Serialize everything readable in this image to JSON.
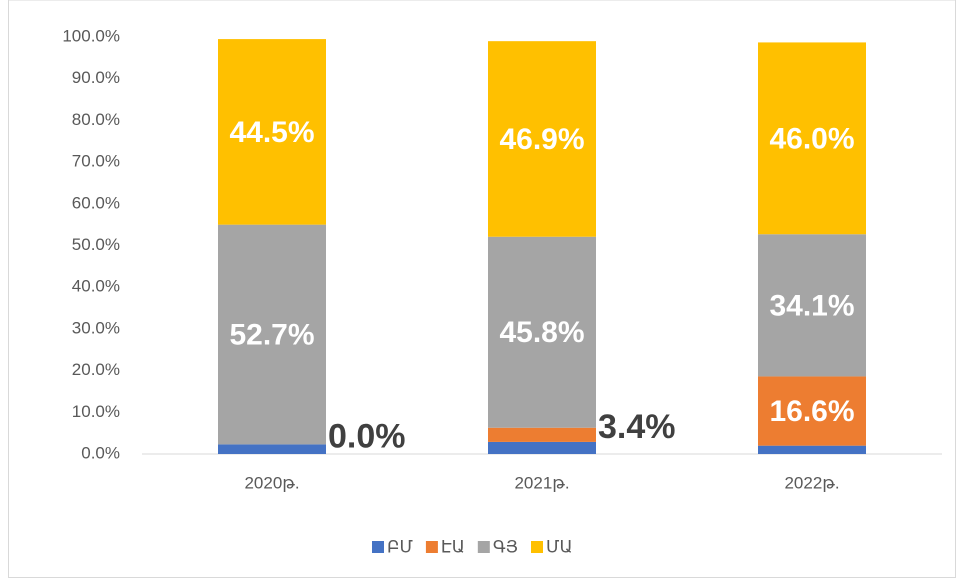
{
  "chart_data": {
    "type": "stacked_bar",
    "categories": [
      "2020թ.",
      "2021թ.",
      "2022թ."
    ],
    "series": [
      {
        "name": "ԲՄ",
        "color": "#4472c4",
        "values": [
          2.3,
          2.9,
          2.0
        ]
      },
      {
        "name": "ԷԱ",
        "color": "#ed7d31",
        "values": [
          0.0,
          3.4,
          16.6
        ],
        "value_labels": [
          "0.0%",
          "3.4%",
          "16.6%"
        ]
      },
      {
        "name": "ԳՅ",
        "color": "#a5a5a5",
        "values": [
          52.7,
          45.8,
          34.1
        ],
        "value_labels": [
          "52.7%",
          "45.8%",
          "34.1%"
        ]
      },
      {
        "name": "ՄԱ",
        "color": "#ffc000",
        "values": [
          44.5,
          46.9,
          46.0
        ],
        "value_labels": [
          "44.5%",
          "46.9%",
          "46.0%"
        ]
      }
    ],
    "ylim": [
      0,
      100
    ],
    "yticks": [
      {
        "value": 0,
        "label": "0.0%"
      },
      {
        "value": 10,
        "label": "10.0%"
      },
      {
        "value": 20,
        "label": "20.0%"
      },
      {
        "value": 30,
        "label": "30.0%"
      },
      {
        "value": 40,
        "label": "40.0%"
      },
      {
        "value": 50,
        "label": "50.0%"
      },
      {
        "value": 60,
        "label": "60.0%"
      },
      {
        "value": 70,
        "label": "70.0%"
      },
      {
        "value": 80,
        "label": "80.0%"
      },
      {
        "value": 90,
        "label": "90.0%"
      },
      {
        "value": 100,
        "label": "100.0%"
      }
    ],
    "grid": false,
    "legend": "bottom"
  }
}
